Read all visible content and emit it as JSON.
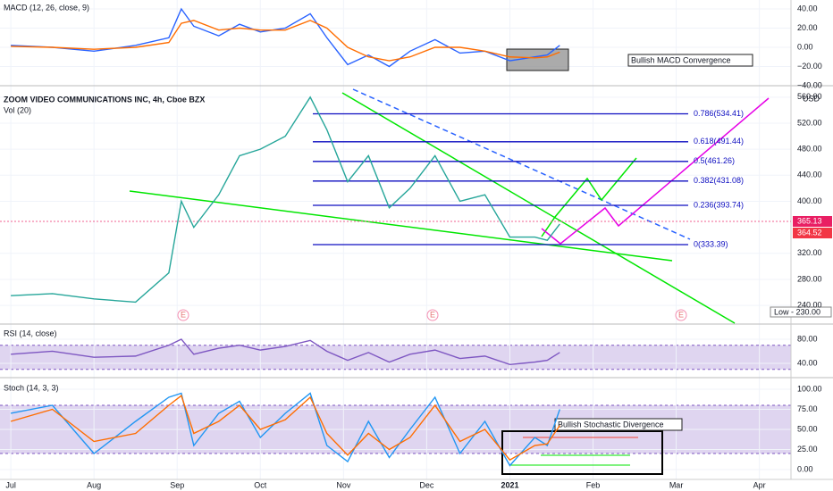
{
  "chart_data": [
    {
      "type": "line",
      "title": "MACD (12, 26, close, 9)",
      "annotation": "Bullish MACD Convergence",
      "x": [
        0,
        0.5,
        1,
        1.5,
        1.9,
        2.05,
        2.2,
        2.5,
        2.75,
        3,
        3.3,
        3.6,
        3.8,
        4.05,
        4.3,
        4.55,
        4.8,
        5.1,
        5.4,
        5.7,
        6,
        6.3,
        6.45,
        6.6
      ],
      "xlim": [
        -0.13,
        9.38
      ],
      "ylim": [
        -40,
        49.3
      ],
      "yticks": [
        {
          "value": 40,
          "label": "40.00"
        },
        {
          "value": 20,
          "label": "20.00"
        },
        {
          "value": 0,
          "label": "0.00"
        },
        {
          "value": -20,
          "label": "−20.00"
        },
        {
          "value": -40,
          "label": "−40.00"
        }
      ],
      "series": [
        {
          "color": "#2962ff",
          "values": [
            2,
            0,
            -4,
            2,
            10,
            40,
            22,
            12,
            24,
            16,
            20,
            35,
            10,
            -18,
            -8,
            -20,
            -4,
            8,
            -6,
            -4,
            -14,
            -10,
            -8,
            2
          ]
        },
        {
          "color": "#ff6d00",
          "values": [
            1,
            0,
            -2,
            0,
            5,
            25,
            28,
            18,
            20,
            18,
            18,
            28,
            20,
            0,
            -10,
            -14,
            -10,
            0,
            0,
            -4,
            -10,
            -11,
            -10,
            -5
          ]
        }
      ]
    },
    {
      "type": "line",
      "title": "ZOOM VIDEO COMMUNICATIONS INC, 4h, Cboe BZX",
      "subtitle": "Vol (20)",
      "unit": "USD",
      "last_price": "365.13",
      "last_close": "364.52",
      "low_label": "Low - 230.00",
      "earnings_mark": "E",
      "x": [
        0,
        0.5,
        1,
        1.5,
        1.9,
        2.05,
        2.2,
        2.5,
        2.75,
        3,
        3.3,
        3.6,
        3.8,
        4.05,
        4.3,
        4.55,
        4.8,
        5.1,
        5.4,
        5.7,
        6,
        6.3,
        6.45,
        6.6
      ],
      "xlim": [
        -0.13,
        9.38
      ],
      "ylim": [
        212.7,
        577.6
      ],
      "yticks": [
        {
          "value": 560,
          "label": "560.00"
        },
        {
          "value": 520,
          "label": "520.00"
        },
        {
          "value": 480,
          "label": "480.00"
        },
        {
          "value": 440,
          "label": "440.00"
        },
        {
          "value": 400,
          "label": "400.00"
        },
        {
          "value": 320,
          "label": "320.00"
        },
        {
          "value": 280,
          "label": "280.00"
        },
        {
          "value": 240,
          "label": "240.00"
        }
      ],
      "series": [
        {
          "color": "#26a69a",
          "values": [
            255,
            258,
            250,
            245,
            290,
            400,
            360,
            410,
            470,
            480,
            500,
            560,
            510,
            430,
            470,
            390,
            420,
            470,
            400,
            410,
            345,
            345,
            340,
            365
          ]
        }
      ],
      "fib": [
        {
          "label": "0.786(534.41)",
          "price": 534.41
        },
        {
          "label": "0.618(491.44)",
          "price": 491.44
        },
        {
          "label": "0.5(461.26)",
          "price": 461.26
        },
        {
          "label": "0.382(431.08)",
          "price": 431.08
        },
        {
          "label": "0.236(393.74)",
          "price": 393.74
        },
        {
          "label": "0(333.39)",
          "price": 333.39
        }
      ]
    },
    {
      "type": "line",
      "title": "RSI (14, close)",
      "x": [
        0,
        0.5,
        1,
        1.5,
        1.9,
        2.05,
        2.2,
        2.5,
        2.75,
        3,
        3.3,
        3.6,
        3.8,
        4.05,
        4.3,
        4.55,
        4.8,
        5.1,
        5.4,
        5.7,
        6,
        6.3,
        6.45,
        6.6
      ],
      "xlim": [
        -0.13,
        9.38
      ],
      "ylim": [
        20.7,
        102.2
      ],
      "band": [
        30,
        70
      ],
      "yticks": [
        {
          "value": 80,
          "label": "80.00"
        },
        {
          "value": 40,
          "label": "40.00"
        }
      ],
      "series": [
        {
          "color": "#7e57c2",
          "values": [
            55,
            60,
            50,
            52,
            70,
            80,
            55,
            65,
            70,
            62,
            68,
            78,
            60,
            45,
            58,
            42,
            55,
            62,
            48,
            52,
            38,
            42,
            45,
            58
          ]
        }
      ]
    },
    {
      "type": "line",
      "title": "Stoch (14, 3, 3)",
      "annotation": "Bullish Stochastic Divergence",
      "x": [
        0,
        0.5,
        1,
        1.5,
        1.9,
        2.05,
        2.2,
        2.5,
        2.75,
        3,
        3.3,
        3.6,
        3.8,
        4.05,
        4.3,
        4.55,
        4.8,
        5.1,
        5.4,
        5.7,
        6,
        6.3,
        6.45,
        6.6
      ],
      "xlim": [
        -0.13,
        9.38
      ],
      "ylim": [
        -12.2,
        112.2
      ],
      "band": [
        20,
        80
      ],
      "yticks": [
        {
          "value": 100,
          "label": "100.00"
        },
        {
          "value": 75,
          "label": "75.00"
        },
        {
          "value": 50,
          "label": "50.00"
        },
        {
          "value": 25,
          "label": "25.00"
        },
        {
          "value": 0,
          "label": "0.00"
        }
      ],
      "xticks": [
        {
          "value": 0,
          "label": "Jul"
        },
        {
          "value": 1,
          "label": "Aug"
        },
        {
          "value": 2,
          "label": "Sep"
        },
        {
          "value": 3,
          "label": "Oct"
        },
        {
          "value": 4,
          "label": "Nov"
        },
        {
          "value": 5,
          "label": "Dec"
        },
        {
          "value": 6,
          "label": "2021"
        },
        {
          "value": 7,
          "label": "Feb"
        },
        {
          "value": 8,
          "label": "Mar"
        },
        {
          "value": 9,
          "label": "Apr"
        }
      ],
      "series": [
        {
          "color": "#2196f3",
          "values": [
            70,
            80,
            20,
            60,
            90,
            95,
            30,
            70,
            85,
            40,
            70,
            95,
            30,
            10,
            60,
            15,
            50,
            90,
            20,
            60,
            5,
            40,
            30,
            75
          ]
        },
        {
          "color": "#ff6d00",
          "values": [
            60,
            75,
            35,
            45,
            80,
            92,
            45,
            60,
            80,
            50,
            62,
            90,
            45,
            18,
            45,
            25,
            40,
            80,
            35,
            50,
            12,
            30,
            32,
            55
          ]
        }
      ]
    }
  ]
}
